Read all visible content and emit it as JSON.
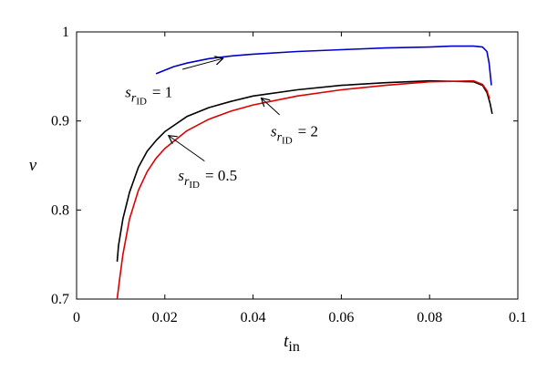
{
  "chart_data": {
    "type": "line",
    "title": "",
    "xlabel": {
      "main": "t",
      "sub": "in"
    },
    "ylabel": "ν",
    "xlim": [
      0,
      0.1
    ],
    "ylim": [
      0.7,
      1.0
    ],
    "xticks": [
      0,
      0.02,
      0.04,
      0.06,
      0.08,
      0.1
    ],
    "xtick_labels": [
      "0",
      "0.02",
      "0.04",
      "0.06",
      "0.08",
      "0.1"
    ],
    "yticks": [
      0.7,
      0.8,
      0.9,
      1.0
    ],
    "ytick_labels": [
      "0.7",
      "0.8",
      "0.9",
      "1"
    ],
    "grid": false,
    "series": [
      {
        "color": "#0000cc",
        "x": [
          0.018,
          0.02,
          0.022,
          0.025,
          0.03,
          0.035,
          0.04,
          0.05,
          0.06,
          0.07,
          0.08,
          0.085,
          0.09,
          0.092,
          0.093,
          0.0935,
          0.094
        ],
        "y": [
          0.953,
          0.957,
          0.961,
          0.965,
          0.97,
          0.973,
          0.975,
          0.978,
          0.98,
          0.982,
          0.983,
          0.984,
          0.984,
          0.983,
          0.978,
          0.965,
          0.94
        ]
      },
      {
        "color": "#000000",
        "x": [
          0.0092,
          0.0095,
          0.0105,
          0.012,
          0.014,
          0.016,
          0.018,
          0.02,
          0.025,
          0.03,
          0.035,
          0.04,
          0.05,
          0.06,
          0.07,
          0.08,
          0.09,
          0.092,
          0.093,
          0.0937,
          0.0942
        ],
        "y": [
          0.742,
          0.76,
          0.79,
          0.82,
          0.848,
          0.866,
          0.878,
          0.888,
          0.905,
          0.915,
          0.922,
          0.928,
          0.935,
          0.94,
          0.943,
          0.945,
          0.944,
          0.94,
          0.932,
          0.92,
          0.908
        ]
      },
      {
        "color": "#dd0000",
        "x": [
          0.0092,
          0.0097,
          0.0105,
          0.012,
          0.014,
          0.016,
          0.018,
          0.02,
          0.025,
          0.03,
          0.035,
          0.04,
          0.05,
          0.06,
          0.07,
          0.08,
          0.09,
          0.092,
          0.093,
          0.0936
        ],
        "y": [
          0.7,
          0.72,
          0.75,
          0.79,
          0.822,
          0.843,
          0.858,
          0.869,
          0.889,
          0.902,
          0.911,
          0.918,
          0.928,
          0.935,
          0.94,
          0.944,
          0.945,
          0.941,
          0.934,
          0.925
        ]
      }
    ],
    "annotations": [
      {
        "base": "s",
        "sub": "r",
        "subsub": "ID",
        "value": "= 1",
        "text_x": 0.011,
        "text_y": 0.927,
        "arrow_from": [
          0.024,
          0.958
        ],
        "arrow_to": [
          0.033,
          0.97
        ]
      },
      {
        "base": "s",
        "sub": "r",
        "subsub": "ID",
        "value": "= 2",
        "text_x": 0.044,
        "text_y": 0.883,
        "arrow_from": [
          0.046,
          0.907
        ],
        "arrow_to": [
          0.042,
          0.925
        ]
      },
      {
        "base": "s",
        "sub": "r",
        "subsub": "ID",
        "value": "= 0.5",
        "text_x": 0.023,
        "text_y": 0.833,
        "arrow_from": [
          0.029,
          0.855
        ],
        "arrow_to": [
          0.021,
          0.883
        ]
      }
    ]
  }
}
